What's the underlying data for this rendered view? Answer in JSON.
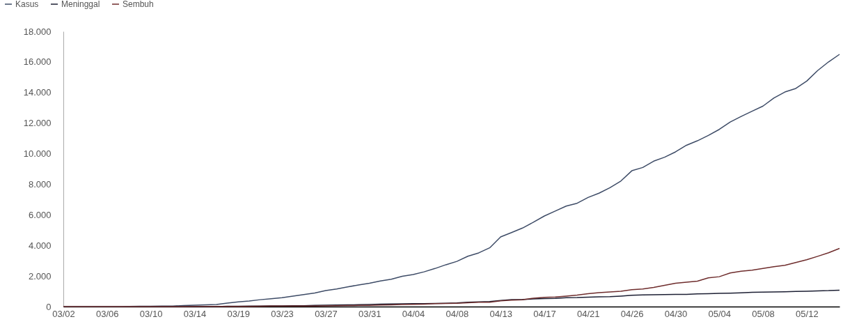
{
  "chart_data": {
    "type": "line",
    "categories": [
      "03/02",
      null,
      null,
      null,
      "03/06",
      null,
      null,
      null,
      "03/10",
      null,
      null,
      null,
      "03/14",
      null,
      null,
      null,
      "03/19",
      null,
      null,
      null,
      "03/23",
      null,
      null,
      null,
      "03/27",
      null,
      null,
      null,
      "03/31",
      null,
      null,
      null,
      "04/04",
      null,
      null,
      null,
      "04/08",
      null,
      null,
      null,
      "04/13",
      null,
      null,
      null,
      "04/17",
      null,
      null,
      null,
      "04/21",
      null,
      null,
      null,
      "04/26",
      null,
      null,
      null,
      "04/30",
      null,
      null,
      null,
      "05/04",
      null,
      null,
      null,
      "05/08",
      null,
      null,
      null,
      "05/12",
      null,
      null,
      null
    ],
    "series": [
      {
        "name": "Kasus",
        "color": "#3d4b66",
        "values": [
          2,
          2,
          2,
          2,
          4,
          4,
          6,
          19,
          27,
          34,
          34,
          69,
          96,
          117,
          134,
          227,
          309,
          369,
          450,
          514,
          579,
          686,
          790,
          893,
          1046,
          1155,
          1285,
          1414,
          1528,
          1677,
          1790,
          1986,
          2092,
          2273,
          2491,
          2738,
          2956,
          3293,
          3512,
          3842,
          4557,
          4839,
          5136,
          5516,
          5923,
          6248,
          6575,
          6760,
          7135,
          7418,
          7775,
          8211,
          8882,
          9096,
          9511,
          9771,
          10118,
          10551,
          10843,
          11192,
          11587,
          12071,
          12438,
          12776,
          13112,
          13645,
          14032,
          14265,
          14749,
          15438,
          16006,
          16496
        ]
      },
      {
        "name": "Meninggal",
        "color": "#1c1f33",
        "values": [
          null,
          null,
          null,
          null,
          null,
          null,
          null,
          null,
          0,
          1,
          1,
          4,
          5,
          5,
          5,
          19,
          25,
          32,
          38,
          48,
          49,
          55,
          58,
          78,
          87,
          102,
          114,
          122,
          136,
          157,
          170,
          181,
          191,
          198,
          209,
          221,
          240,
          280,
          306,
          327,
          399,
          459,
          469,
          496,
          520,
          535,
          582,
          590,
          616,
          635,
          647,
          689,
          743,
          765,
          773,
          784,
          792,
          800,
          831,
          845,
          864,
          872,
          895,
          930,
          943,
          959,
          973,
          991,
          1007,
          1028,
          1043,
          1076
        ]
      },
      {
        "name": "Sembuh",
        "color": "#6e2c2c",
        "values": [
          0,
          0,
          0,
          0,
          0,
          0,
          0,
          0,
          0,
          2,
          3,
          5,
          8,
          8,
          8,
          11,
          15,
          16,
          20,
          29,
          30,
          30,
          31,
          35,
          46,
          59,
          64,
          75,
          81,
          103,
          112,
          134,
          150,
          164,
          192,
          204,
          222,
          252,
          282,
          286,
          380,
          426,
          446,
          548,
          607,
          631,
          686,
          747,
          842,
          913,
          960,
          1002,
          1107,
          1151,
          1254,
          1391,
          1522,
          1591,
          1665,
          1876,
          1954,
          2197,
          2317,
          2381,
          2494,
          2607,
          2698,
          2881,
          3063,
          3287,
          3518,
          3803
        ]
      }
    ],
    "ylim": [
      0,
      18000
    ],
    "yticks": [
      {
        "value": 0,
        "label": "0"
      },
      {
        "value": 2000,
        "label": "2.000"
      },
      {
        "value": 4000,
        "label": "4.000"
      },
      {
        "value": 6000,
        "label": "6.000"
      },
      {
        "value": 8000,
        "label": "8.000"
      },
      {
        "value": 10000,
        "label": "10.000"
      },
      {
        "value": 12000,
        "label": "12.000"
      },
      {
        "value": 14000,
        "label": "14.000"
      },
      {
        "value": 16000,
        "label": "16.000"
      },
      {
        "value": 18000,
        "label": "18.000"
      }
    ],
    "legend": "top left",
    "grid": false
  }
}
